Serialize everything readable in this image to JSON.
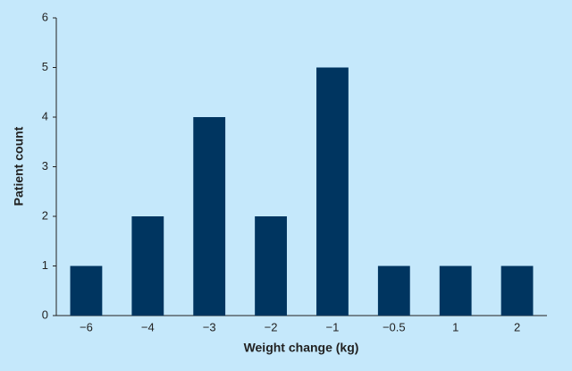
{
  "chart_data": {
    "type": "bar",
    "x_label": "Weight change (kg)",
    "y_label": "Patient count",
    "categories": [
      "−6",
      "−4",
      "−3",
      "−2",
      "−1",
      "−0.5",
      "1",
      "2"
    ],
    "values": [
      1,
      2,
      4,
      2,
      5,
      1,
      1,
      1
    ],
    "color": "#003560",
    "ylim": [
      0,
      6
    ],
    "yticks": [
      0,
      1,
      2,
      3,
      4,
      5,
      6
    ],
    "grid": false
  }
}
